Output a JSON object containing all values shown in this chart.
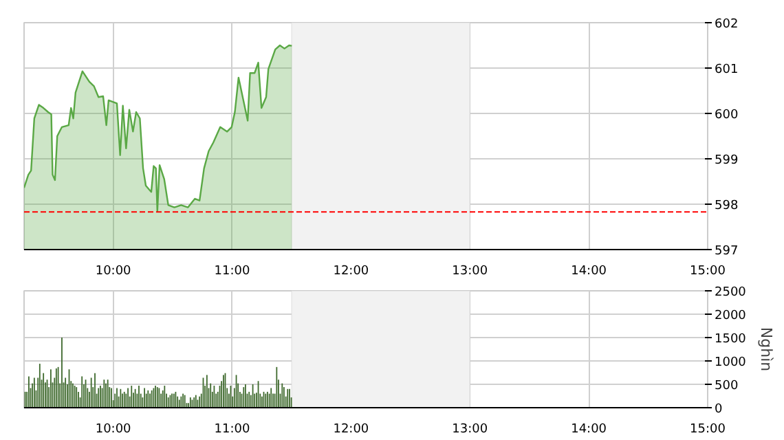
{
  "chart_data": [
    {
      "type": "area",
      "x": [
        9.25,
        9.286,
        9.309,
        9.336,
        9.375,
        9.413,
        9.452,
        9.479,
        9.49,
        9.51,
        9.529,
        9.568,
        9.625,
        9.645,
        9.664,
        9.683,
        9.741,
        9.799,
        9.838,
        9.876,
        9.915,
        9.942,
        9.961,
        10.031,
        10.058,
        10.081,
        10.108,
        10.135,
        10.166,
        10.193,
        10.224,
        10.251,
        10.274,
        10.32,
        10.34,
        10.359,
        10.371,
        10.39,
        10.429,
        10.463,
        10.514,
        10.571,
        10.629,
        10.687,
        10.726,
        10.764,
        10.803,
        10.842,
        10.9,
        10.958,
        10.996,
        11.023,
        11.054,
        11.093,
        11.131,
        11.151,
        11.189,
        11.22,
        11.247,
        11.286,
        11.305,
        11.363,
        11.402,
        11.44,
        11.479,
        11.502
      ],
      "values": [
        598.36,
        598.65,
        598.74,
        599.89,
        600.19,
        600.12,
        600.03,
        599.98,
        598.65,
        598.53,
        599.5,
        599.7,
        599.74,
        600.12,
        599.89,
        600.46,
        600.93,
        600.7,
        600.6,
        600.36,
        600.38,
        599.74,
        600.29,
        600.22,
        599.08,
        600.17,
        599.23,
        600.08,
        599.6,
        600.03,
        599.89,
        598.79,
        598.41,
        598.27,
        598.84,
        598.79,
        597.84,
        598.86,
        598.55,
        597.98,
        597.93,
        597.98,
        597.93,
        598.12,
        598.08,
        598.79,
        599.17,
        599.36,
        599.7,
        599.6,
        599.7,
        600.03,
        600.79,
        600.31,
        599.84,
        600.89,
        600.89,
        601.12,
        600.12,
        600.36,
        600.98,
        601.41,
        601.5,
        601.43,
        601.5,
        601.49
      ],
      "color": "#5aa845",
      "xlim": [
        9.25,
        15
      ],
      "ylim": [
        597,
        602
      ],
      "yticks": [
        597,
        598,
        599,
        600,
        601,
        602
      ],
      "xticks": [
        {
          "value": 10,
          "label": "10:00"
        },
        {
          "value": 11,
          "label": "11:00"
        },
        {
          "value": 12,
          "label": "12:00"
        },
        {
          "value": 13,
          "label": "13:00"
        },
        {
          "value": 14,
          "label": "14:00"
        },
        {
          "value": 15,
          "label": "15:00"
        }
      ],
      "grid": true,
      "ref_lines": [
        {
          "axis": "y",
          "value": 597.83,
          "color": "#ff0000",
          "line_style": "dashed"
        }
      ],
      "bands": [
        {
          "axis": "x",
          "from": 11.5,
          "to": 13,
          "color": "#f2f2f2"
        }
      ]
    },
    {
      "type": "bar",
      "x": [
        9.259,
        9.274,
        9.29,
        9.305,
        9.32,
        9.336,
        9.351,
        9.367,
        9.382,
        9.398,
        9.413,
        9.429,
        9.444,
        9.459,
        9.475,
        9.49,
        9.506,
        9.521,
        9.537,
        9.552,
        9.568,
        9.583,
        9.598,
        9.614,
        9.629,
        9.645,
        9.66,
        9.676,
        9.691,
        9.707,
        9.722,
        9.737,
        9.753,
        9.768,
        9.784,
        9.799,
        9.815,
        9.83,
        9.846,
        9.861,
        9.876,
        9.892,
        9.907,
        9.923,
        9.938,
        9.954,
        9.969,
        9.985,
        10.0,
        10.015,
        10.031,
        10.046,
        10.062,
        10.077,
        10.093,
        10.108,
        10.124,
        10.139,
        10.154,
        10.17,
        10.185,
        10.201,
        10.216,
        10.232,
        10.247,
        10.263,
        10.278,
        10.293,
        10.309,
        10.324,
        10.34,
        10.355,
        10.371,
        10.386,
        10.402,
        10.417,
        10.432,
        10.448,
        10.463,
        10.479,
        10.494,
        10.51,
        10.525,
        10.541,
        10.556,
        10.571,
        10.587,
        10.602,
        10.618,
        10.633,
        10.649,
        10.664,
        10.68,
        10.695,
        10.71,
        10.726,
        10.741,
        10.757,
        10.772,
        10.788,
        10.803,
        10.819,
        10.834,
        10.849,
        10.865,
        10.88,
        10.896,
        10.911,
        10.927,
        10.942,
        10.958,
        10.973,
        10.988,
        11.004,
        11.019,
        11.035,
        11.05,
        11.066,
        11.081,
        11.097,
        11.112,
        11.127,
        11.143,
        11.158,
        11.174,
        11.189,
        11.205,
        11.22,
        11.236,
        11.251,
        11.266,
        11.282,
        11.297,
        11.313,
        11.328,
        11.344,
        11.359,
        11.375,
        11.39,
        11.405,
        11.421,
        11.436,
        11.452,
        11.467,
        11.483,
        11.498
      ],
      "values": [
        340,
        340,
        670,
        420,
        520,
        640,
        370,
        640,
        940,
        600,
        740,
        540,
        600,
        440,
        820,
        540,
        640,
        840,
        870,
        520,
        1500,
        540,
        640,
        500,
        820,
        570,
        520,
        470,
        440,
        340,
        220,
        670,
        500,
        600,
        420,
        340,
        640,
        440,
        740,
        300,
        420,
        470,
        420,
        600,
        520,
        600,
        440,
        420,
        160,
        300,
        420,
        240,
        400,
        300,
        340,
        300,
        420,
        240,
        470,
        320,
        400,
        300,
        470,
        300,
        220,
        420,
        300,
        370,
        300,
        370,
        420,
        470,
        440,
        420,
        300,
        370,
        470,
        300,
        220,
        270,
        300,
        300,
        340,
        240,
        170,
        240,
        300,
        270,
        100,
        100,
        220,
        170,
        220,
        270,
        170,
        240,
        300,
        640,
        470,
        700,
        420,
        520,
        340,
        470,
        300,
        340,
        470,
        570,
        700,
        740,
        420,
        300,
        470,
        240,
        420,
        700,
        520,
        340,
        300,
        440,
        500,
        300,
        340,
        270,
        500,
        300,
        320,
        570,
        300,
        240,
        340,
        300,
        340,
        300,
        420,
        300,
        300,
        870,
        600,
        300,
        520,
        440,
        240,
        400,
        400,
        220
      ],
      "color": "#3f6a2e",
      "xlim": [
        9.25,
        15
      ],
      "ylim": [
        0,
        2500
      ],
      "yticks": [
        0,
        500,
        1000,
        1500,
        2000,
        2500
      ],
      "xticks": [
        {
          "value": 10,
          "label": "10:00"
        },
        {
          "value": 11,
          "label": "11:00"
        },
        {
          "value": 12,
          "label": "12:00"
        },
        {
          "value": 13,
          "label": "13:00"
        },
        {
          "value": 14,
          "label": "14:00"
        },
        {
          "value": 15,
          "label": "15:00"
        }
      ],
      "ylabel": "Nghìn",
      "grid": true,
      "bands": [
        {
          "axis": "x",
          "from": 11.5,
          "to": 13,
          "color": "#f2f2f2"
        }
      ]
    }
  ]
}
